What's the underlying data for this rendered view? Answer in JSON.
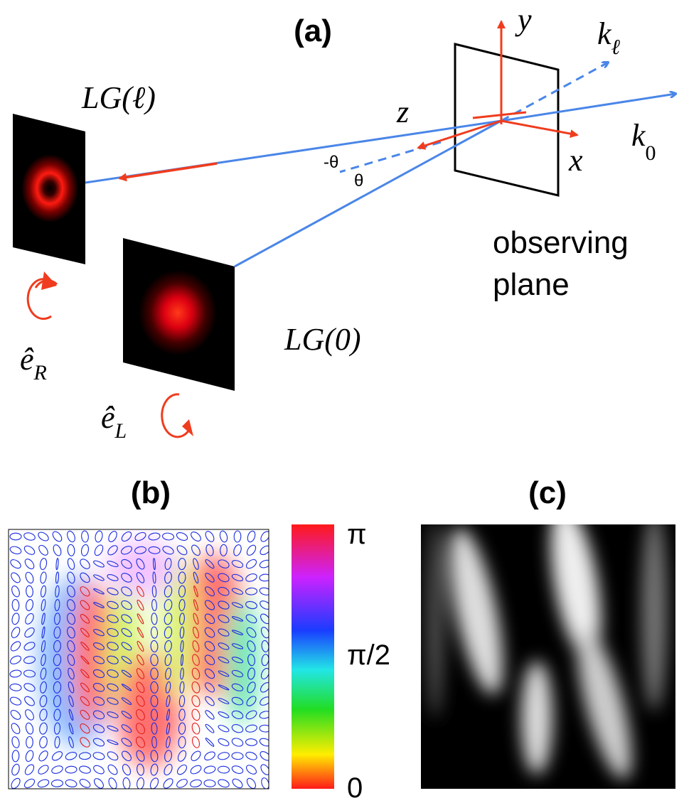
{
  "panel_a": {
    "label": "(a)",
    "beam_source_l": {
      "label": "LG(ℓ)",
      "polarization": {
        "symbol": "ê",
        "subscript": "R"
      }
    },
    "beam_source_0": {
      "label": "LG(0)",
      "polarization": {
        "symbol": "ê",
        "subscript": "L"
      }
    },
    "axes": {
      "z": "z",
      "y": "y",
      "x": "x"
    },
    "wavevectors": [
      {
        "symbol": "k",
        "subscript": "ℓ"
      },
      {
        "symbol": "k",
        "subscript": "0"
      }
    ],
    "angles": [
      "-θ",
      "θ"
    ],
    "observing_plane": [
      "observing",
      "plane"
    ]
  },
  "panel_b": {
    "label": "(b)",
    "colorbar_labels": [
      "π",
      "π/2",
      "0"
    ]
  },
  "panel_c": {
    "label": "(c)"
  }
}
